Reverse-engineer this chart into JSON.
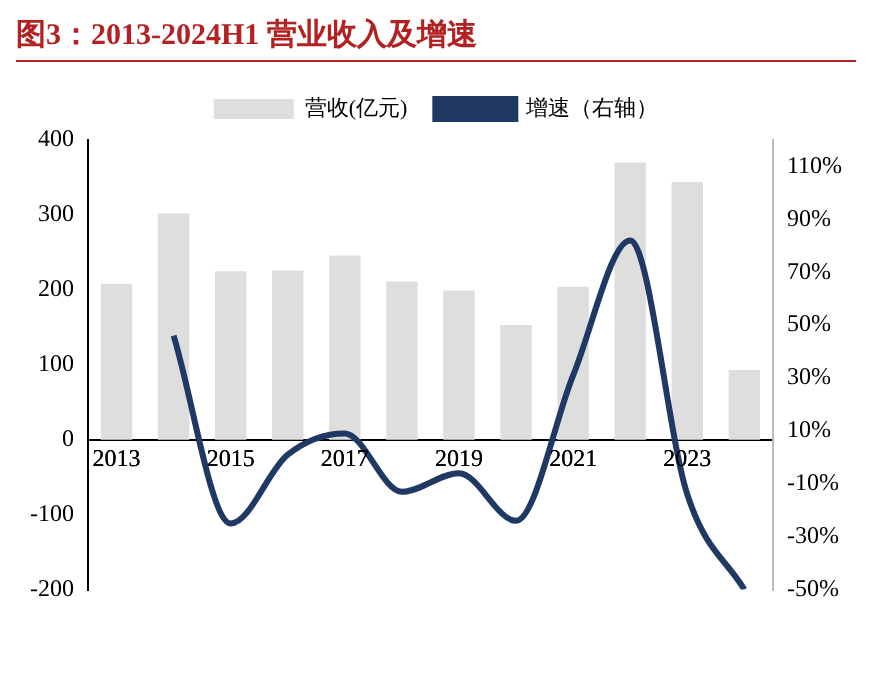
{
  "chart_data": {
    "type": "bar",
    "title": "图3：2013-2024H1 营业收入及增速",
    "categories": [
      "2013",
      null,
      "2015",
      null,
      "2017",
      null,
      "2019",
      null,
      "2021",
      null,
      "2023",
      null
    ],
    "series": [
      {
        "name": "营收(亿元)",
        "color": "#dedede",
        "values": [
          208,
          302,
          225,
          226,
          246,
          211,
          199,
          153,
          204,
          370,
          344,
          93
        ]
      },
      {
        "name": "增速（右轴）",
        "type": "line",
        "axis": "y2",
        "color": "#1f3864",
        "values": [
          null,
          46,
          -25,
          1,
          9,
          -13,
          -6,
          -24,
          31,
          82,
          -14,
          -50
        ]
      }
    ],
    "ylim": [
      -200,
      400
    ],
    "yticks": [
      -200,
      -100,
      0,
      100,
      200,
      300,
      400
    ],
    "y2lim": [
      -50,
      120
    ],
    "y2ticks": [
      {
        "value": -50,
        "label": "-50%"
      },
      {
        "value": -30,
        "label": "-30%"
      },
      {
        "value": -10,
        "label": "-10%"
      },
      {
        "value": 10,
        "label": "10%"
      },
      {
        "value": 30,
        "label": "30%"
      },
      {
        "value": 50,
        "label": "50%"
      },
      {
        "value": 70,
        "label": "70%"
      },
      {
        "value": 90,
        "label": "90%"
      },
      {
        "value": 110,
        "label": "110%"
      }
    ],
    "legend": "top",
    "grid": false,
    "marker": "none"
  }
}
